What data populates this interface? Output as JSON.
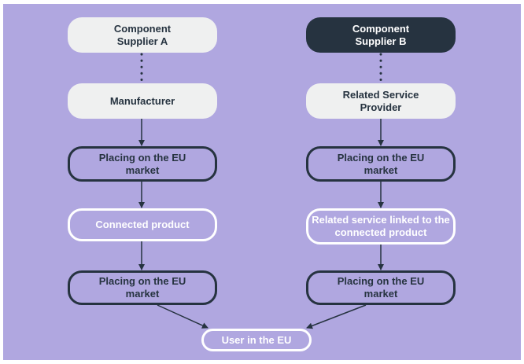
{
  "colors": {
    "background": "#b0a7e0",
    "dark": "#263340",
    "light": "#eff0f0",
    "white": "#ffffff"
  },
  "left": {
    "supplier": "Component Supplier A",
    "actor": "Manufacturer",
    "placing1": "Placing on the EU market",
    "product": "Connected product",
    "placing2": "Placing on the EU market"
  },
  "right": {
    "supplier": "Component Supplier B",
    "actor": "Related Service Provider",
    "placing1": "Placing on the EU market",
    "product": "Related service linked to the connected product",
    "placing2": "Placing on the EU market"
  },
  "user": "User in the EU"
}
